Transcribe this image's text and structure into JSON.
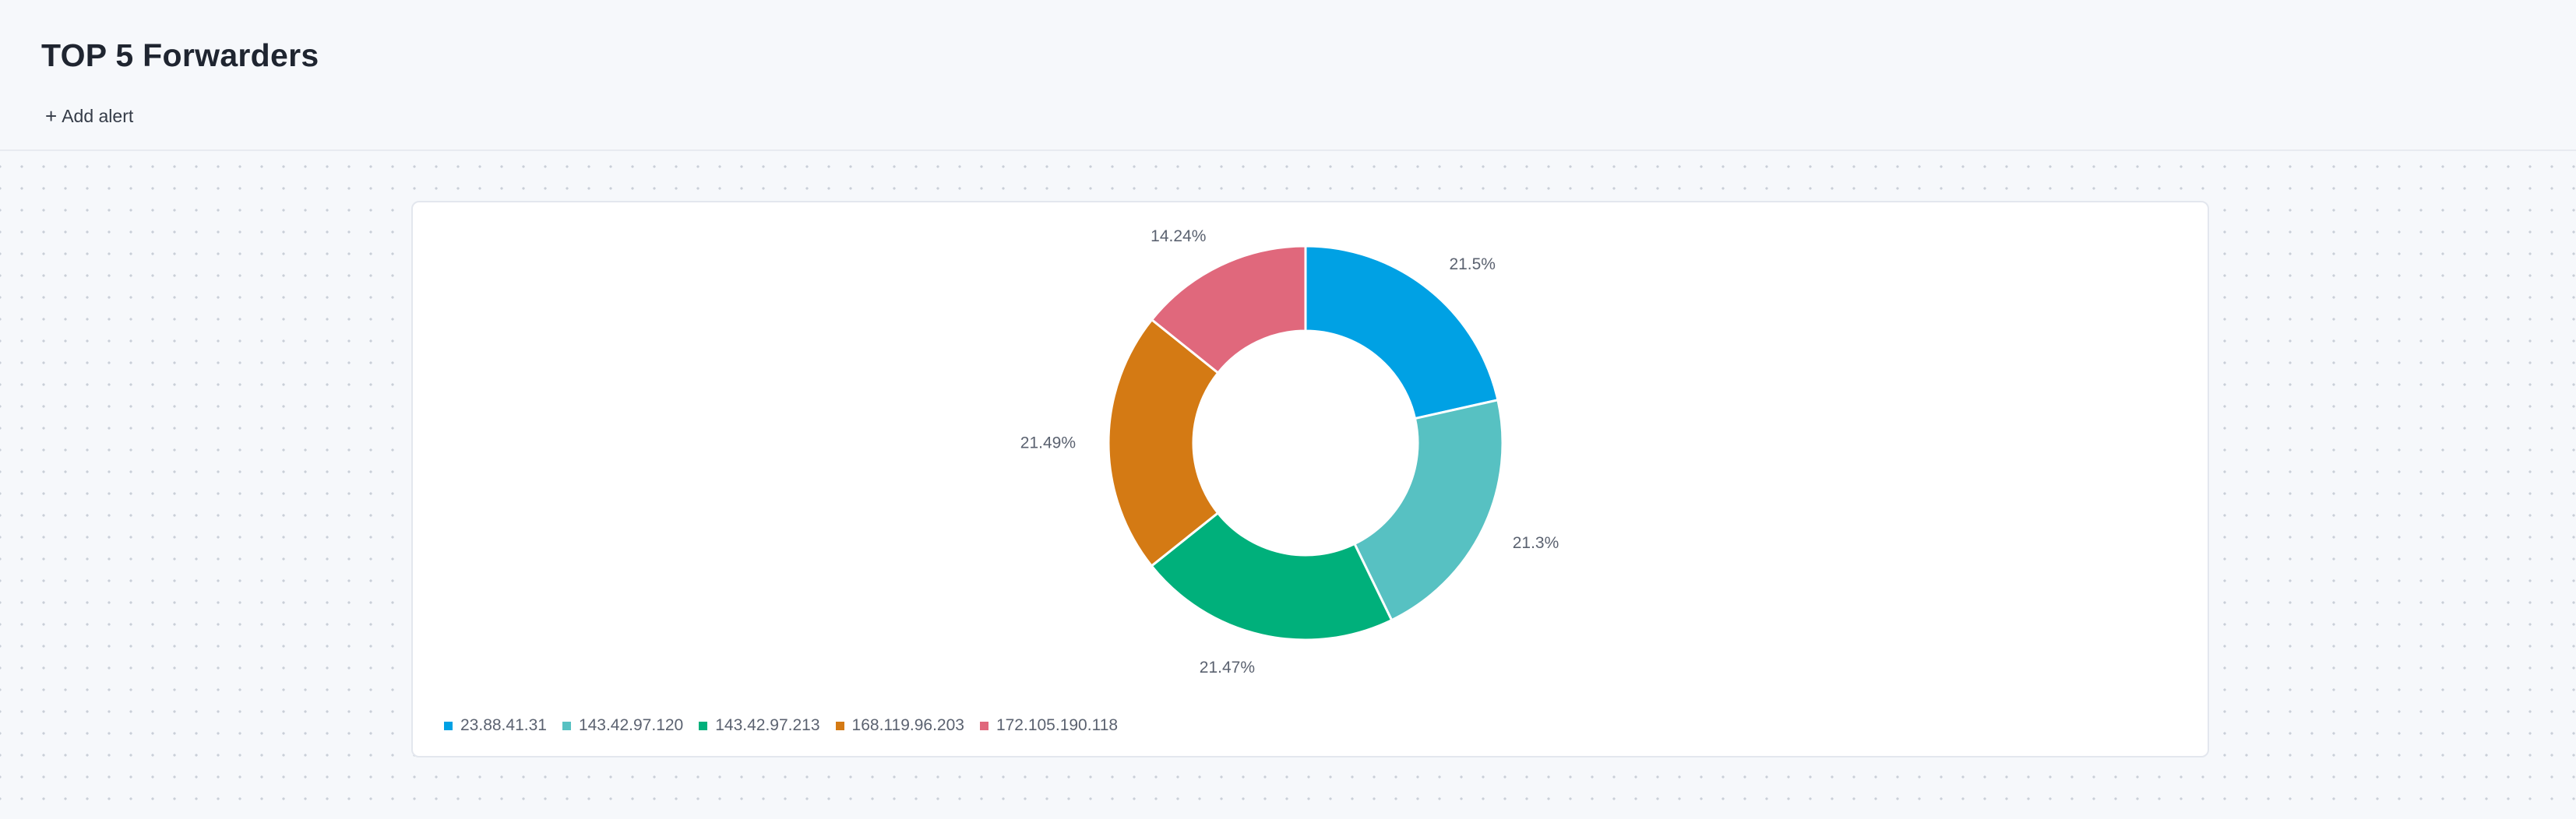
{
  "header": {
    "title": "TOP 5 Forwarders",
    "add_alert_label": "Add alert",
    "add_alert_icon": "plus-icon"
  },
  "chart_data": {
    "type": "pie",
    "variant": "donut",
    "categories": [
      "23.88.41.31",
      "143.42.97.120",
      "143.42.97.213",
      "168.119.96.203",
      "172.105.190.118"
    ],
    "values": [
      21.5,
      21.3,
      21.47,
      21.49,
      14.24
    ],
    "labels": [
      "21.5%",
      "21.3%",
      "21.47%",
      "21.49%",
      "14.24%"
    ],
    "colors": [
      "#00a1e4",
      "#57c1c2",
      "#00b07b",
      "#d47a14",
      "#e0687c"
    ],
    "legend_position": "bottom-left"
  }
}
